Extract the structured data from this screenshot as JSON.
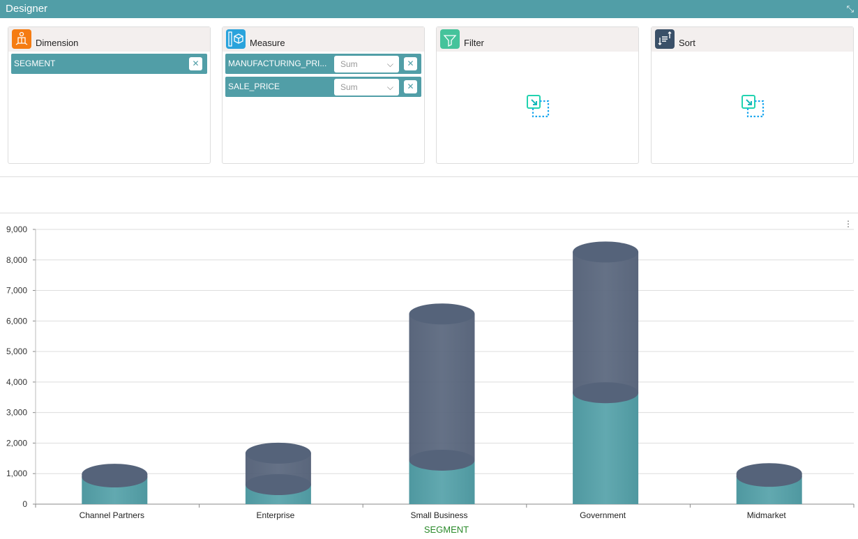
{
  "title": "Designer",
  "panels": {
    "dimension": {
      "title": "Dimension",
      "items": [
        {
          "label": "SEGMENT"
        }
      ]
    },
    "measure": {
      "title": "Measure",
      "items": [
        {
          "label": "MANUFACTURING_PRI...",
          "agg": "Sum"
        },
        {
          "label": "SALE_PRICE",
          "agg": "Sum"
        }
      ]
    },
    "filter": {
      "title": "Filter"
    },
    "sort": {
      "title": "Sort"
    }
  },
  "close_glyph": "✕",
  "chart_data": {
    "type": "bar",
    "stacked": true,
    "style": "3d-cylinder",
    "categories": [
      "Channel Partners",
      "Enterprise",
      "Small Business",
      "Government",
      "Midmarket"
    ],
    "series": [
      {
        "name": "MANUFACTURING_PRICE",
        "color": "#56a1a9",
        "values": [
          890,
          640,
          1440,
          3650,
          910
        ]
      },
      {
        "name": "SALE_PRICE",
        "color": "#55637a",
        "values": [
          90,
          1030,
          4790,
          4610,
          90
        ]
      }
    ],
    "xlabel": "SEGMENT",
    "ylim": [
      0,
      9000
    ],
    "yticks": [
      "0",
      "1,000",
      "2,000",
      "3,000",
      "4,000",
      "5,000",
      "6,000",
      "7,000",
      "8,000",
      "9,000"
    ],
    "grid": true
  }
}
